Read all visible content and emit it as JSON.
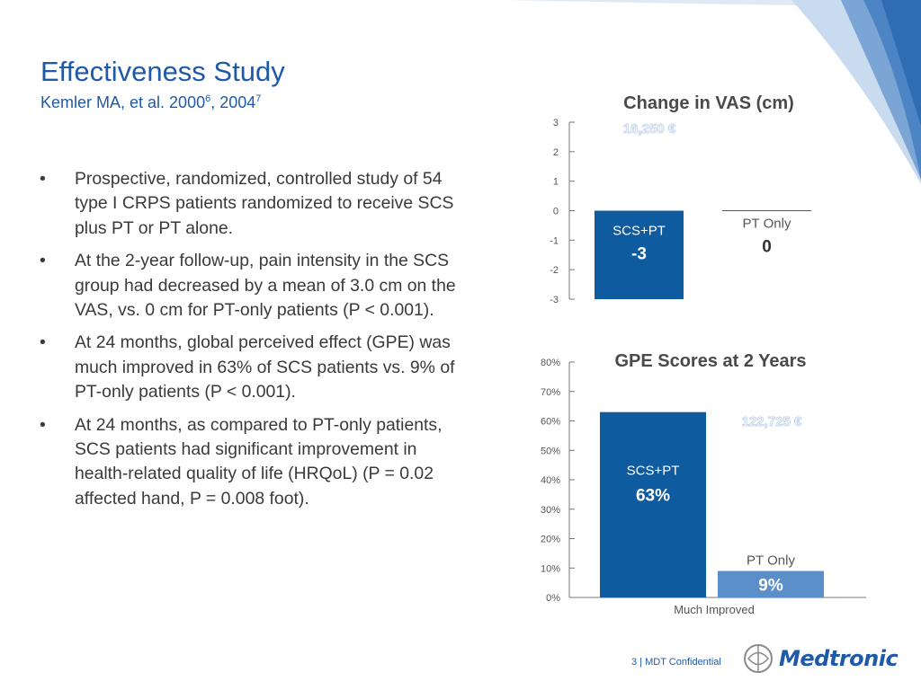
{
  "slide": {
    "title": "Effectiveness Study",
    "subtitle_text": "Kemler MA, et al. 2000",
    "subtitle_sup1": "6",
    "subtitle_mid": ", 2004",
    "subtitle_sup2": "7",
    "bullet_marker": "•",
    "bullets": [
      "Prospective, randomized, controlled study of 54 type I CRPS patients randomized to receive SCS plus PT or PT alone.",
      "At the 2-year follow-up, pain intensity in the SCS group had decreased by a mean of 3.0 cm on the VAS, vs. 0 cm for PT-only patients (P < 0.001).",
      "At 24 months, global perceived effect (GPE) was much improved in 63% of SCS patients vs. 9% of PT-only patients (P < 0.001).",
      "At 24 months, as compared to PT-only patients, SCS patients had significant improvement in health-related quality of life (HRQoL) (P = 0.02 affected hand, P = 0.008 foot)."
    ]
  },
  "footer": {
    "page_text": "3 | MDT Confidential",
    "logo_text": "Medtronic"
  },
  "colors": {
    "title_blue": "#1f5aa8",
    "bar_dark": "#0f5ba0",
    "bar_light": "#5b8fc9",
    "watermark": "#c6d6ea"
  },
  "chart_data": [
    {
      "type": "bar",
      "title": "Change in VAS (cm)",
      "watermark": "16,250 €",
      "ylim": [
        -3,
        3
      ],
      "yticks": [
        3,
        2,
        1,
        0,
        -1,
        -2,
        -3
      ],
      "series": [
        {
          "name": "SCS+PT",
          "value": -3,
          "value_label": "-3"
        },
        {
          "name": "PT Only",
          "value": 0,
          "value_label": "0"
        }
      ]
    },
    {
      "type": "bar",
      "title": "GPE Scores at 2 Years",
      "watermark": "122,725 €",
      "xlabel": "Much Improved",
      "ylim": [
        0,
        80
      ],
      "yticks": [
        "80%",
        "70%",
        "60%",
        "50%",
        "40%",
        "30%",
        "20%",
        "10%",
        "0%"
      ],
      "ytick_values": [
        80,
        70,
        60,
        50,
        40,
        30,
        20,
        10,
        0
      ],
      "categories": [
        "Much Improved"
      ],
      "series": [
        {
          "name": "SCS+PT",
          "value": 63,
          "value_label": "63%"
        },
        {
          "name": "PT Only",
          "value": 9,
          "value_label": "9%"
        }
      ]
    }
  ]
}
